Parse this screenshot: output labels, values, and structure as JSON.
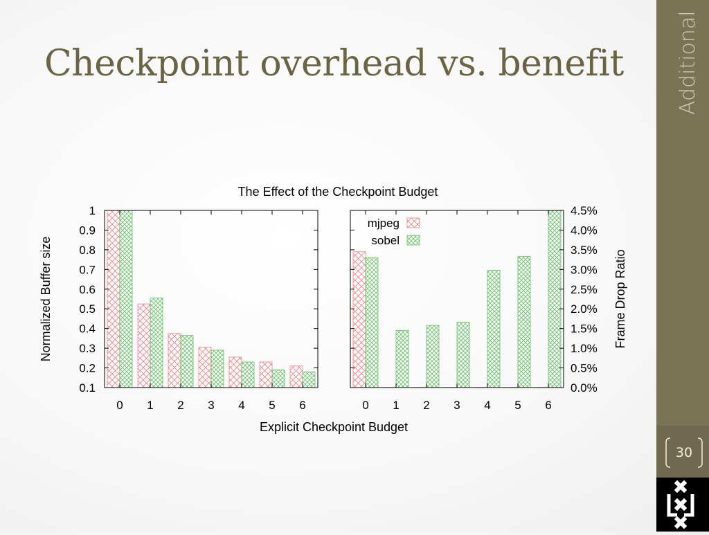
{
  "slide": {
    "title": "Checkpoint overhead vs. benefit",
    "section": "Additional",
    "page_number": "30"
  },
  "colors": {
    "sidebar": "#7a7356",
    "title": "#6b6444",
    "mjpeg": "#e8868a",
    "sobel": "#6cbf6c"
  },
  "icons": {
    "logo": "uva-logo-icon"
  },
  "chart_data": {
    "type": "bar",
    "title": "The Effect of the Checkpoint Budget",
    "xlabel": "Explicit Checkpoint Budget",
    "categories": [
      "0",
      "1",
      "2",
      "3",
      "4",
      "5",
      "6"
    ],
    "legend": {
      "placement": "top-left of right panel",
      "entries": [
        "mjpeg",
        "sobel"
      ]
    },
    "grid": false,
    "panels": [
      {
        "ylabel": "Normalized Buffer size",
        "ylim": [
          0.1,
          1
        ],
        "yticks": [
          "0.1",
          "0.2",
          "0.3",
          "0.4",
          "0.5",
          "0.6",
          "0.7",
          "0.8",
          "0.9",
          "1"
        ],
        "series": [
          {
            "name": "mjpeg",
            "values": [
              1.0,
              0.525,
              0.375,
              0.305,
              0.255,
              0.23,
              0.21
            ]
          },
          {
            "name": "sobel",
            "values": [
              1.0,
              0.555,
              0.365,
              0.29,
              0.23,
              0.19,
              0.18
            ]
          }
        ]
      },
      {
        "ylabel": "Frame Drop Ratio",
        "ylim": [
          0,
          4.5
        ],
        "yticks": [
          "0.0%",
          "0.5%",
          "1.0%",
          "1.5%",
          "2.0%",
          "2.5%",
          "3.0%",
          "3.5%",
          "4.0%",
          "4.5%"
        ],
        "series": [
          {
            "name": "mjpeg",
            "values": [
              3.45,
              0,
              0,
              0,
              0,
              0,
              0
            ]
          },
          {
            "name": "sobel",
            "values": [
              3.3,
              1.45,
              1.58,
              1.66,
              2.98,
              3.33,
              4.5
            ]
          }
        ]
      }
    ]
  }
}
